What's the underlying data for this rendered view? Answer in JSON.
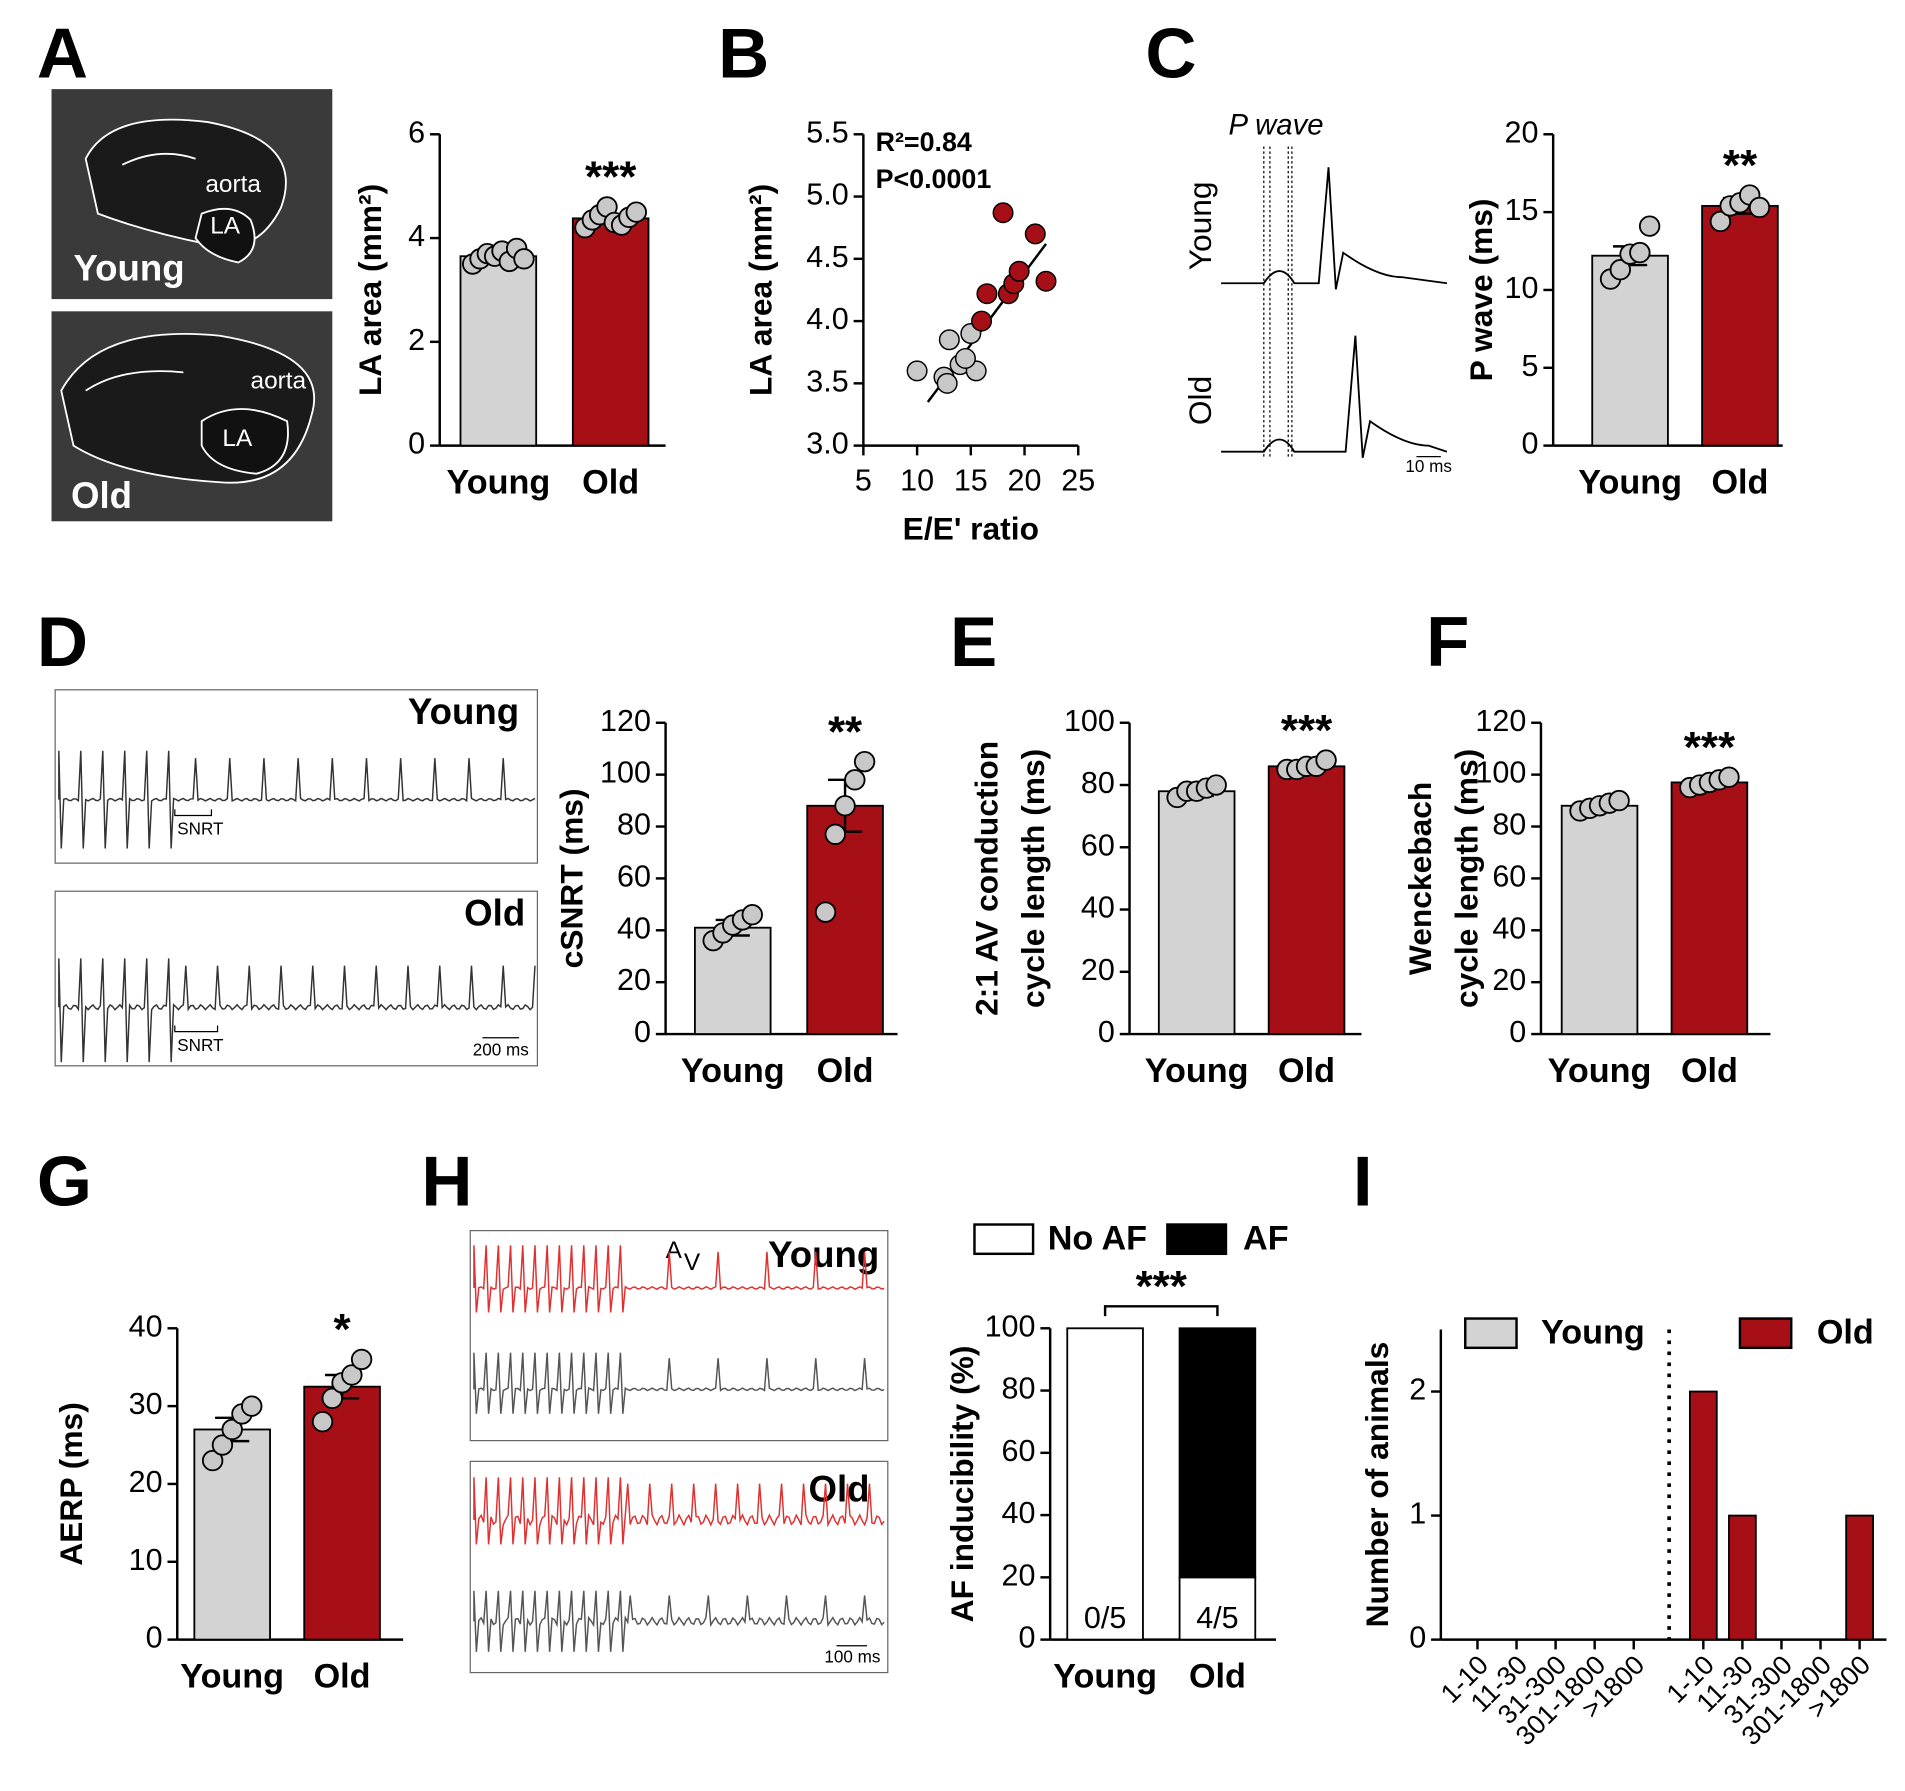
{
  "panel_labels": [
    "A",
    "B",
    "C",
    "D",
    "E",
    "F",
    "G",
    "H",
    "I"
  ],
  "images": [
    {
      "labels": [
        "aorta",
        "LA",
        "Young"
      ]
    },
    {
      "labels": [
        "aorta",
        "LA",
        "Old"
      ]
    },
    {
      "labels": [
        "P wave",
        "Young",
        "Old",
        "10 ms"
      ]
    },
    {
      "labels": [
        "Young",
        "SNRT"
      ]
    },
    {
      "labels": [
        "Old",
        "SNRT",
        "200 ms"
      ]
    },
    {
      "labels": [
        "A",
        "V",
        "Young"
      ]
    },
    {
      "labels": [
        "Old",
        "100 ms"
      ]
    }
  ],
  "chart_data": [
    {
      "type": "bar",
      "categories": [
        "Young",
        "Old"
      ],
      "values": [
        3.65,
        4.38
      ],
      "errors": [
        0.05,
        0.07
      ],
      "points": [
        [
          3.5,
          3.6,
          3.7,
          3.65,
          3.75,
          3.55,
          3.8,
          3.6
        ],
        [
          4.2,
          4.35,
          4.45,
          4.6,
          4.3,
          4.25,
          4.4,
          4.5
        ]
      ],
      "colors": [
        "#d3d3d3",
        "#a50f15"
      ],
      "ylim": [
        0,
        6
      ],
      "yticks": [
        0,
        2,
        4,
        6
      ],
      "ylabel": [
        "LA area (mm²)"
      ],
      "significance": "***"
    },
    {
      "type": "scatter",
      "xlabel": "E/E' ratio",
      "ylabel": [
        "LA area (mm²)"
      ],
      "annotations": [
        "R²=0.84",
        "P<0.0001"
      ],
      "series": [
        {
          "color": "#c8c8c8",
          "x": [
            10,
            12.5,
            13,
            14,
            12.8,
            15,
            15.5,
            14.5
          ],
          "y": [
            3.6,
            3.55,
            3.85,
            3.65,
            3.5,
            3.9,
            3.6,
            3.7
          ]
        },
        {
          "color": "#a50f15",
          "x": [
            16,
            16.5,
            18,
            18.5,
            19,
            19.5,
            21,
            22
          ],
          "y": [
            4.0,
            4.22,
            4.87,
            4.22,
            4.3,
            4.4,
            4.7,
            4.32
          ]
        }
      ],
      "fit": {
        "x": [
          11,
          22
        ],
        "y": [
          3.35,
          4.62
        ]
      },
      "xlim": [
        5,
        25
      ],
      "xticks": [
        5,
        10,
        15,
        20,
        25
      ],
      "ylim": [
        3,
        5.5
      ],
      "yticks": [
        {
          "value": 3,
          "label": "3.0"
        },
        3.5,
        {
          "value": 4,
          "label": "4.0"
        },
        4.5,
        {
          "value": 5,
          "label": "5.0"
        },
        5.5
      ]
    },
    {
      "type": "bar",
      "categories": [
        "Young",
        "Old"
      ],
      "values": [
        12.2,
        15.4
      ],
      "errors": [
        0.6,
        0.5
      ],
      "points": [
        [
          10.7,
          11.3,
          12.3,
          12.4,
          14.1
        ],
        [
          14.4,
          15.4,
          15.6,
          16.1,
          15.3
        ]
      ],
      "colors": [
        "#d3d3d3",
        "#a50f15"
      ],
      "ylim": [
        0,
        20
      ],
      "yticks": [
        0,
        5,
        10,
        15,
        20
      ],
      "ylabel": [
        "P wave (ms)"
      ],
      "significance": "**"
    },
    {
      "type": "bar",
      "categories": [
        "Young",
        "Old"
      ],
      "values": [
        41,
        88
      ],
      "errors": [
        3,
        10
      ],
      "points": [
        [
          36,
          39,
          42,
          44,
          46
        ],
        [
          47,
          77,
          88,
          98,
          105
        ]
      ],
      "colors": [
        "#d3d3d3",
        "#a50f15"
      ],
      "ylim": [
        0,
        120
      ],
      "yticks": [
        0,
        20,
        40,
        60,
        80,
        100,
        120
      ],
      "ylabel": [
        "cSNRT (ms)"
      ],
      "significance": "**"
    },
    {
      "type": "bar",
      "categories": [
        "Young",
        "Old"
      ],
      "values": [
        78,
        86
      ],
      "errors": [
        1.5,
        1
      ],
      "points": [
        [
          76,
          78,
          78,
          79,
          80
        ],
        [
          85,
          85,
          86,
          86,
          88
        ]
      ],
      "colors": [
        "#d3d3d3",
        "#a50f15"
      ],
      "ylim": [
        0,
        100
      ],
      "yticks": [
        0,
        20,
        40,
        60,
        80,
        100
      ],
      "ylabel": [
        "2:1 AV conduction",
        "cycle length (ms)"
      ],
      "significance": "***"
    },
    {
      "type": "bar",
      "categories": [
        "Young",
        "Old"
      ],
      "values": [
        88,
        97
      ],
      "errors": [
        1.5,
        1.5
      ],
      "points": [
        [
          86,
          87,
          88,
          89,
          90
        ],
        [
          95,
          96,
          97,
          98,
          99
        ]
      ],
      "colors": [
        "#d3d3d3",
        "#a50f15"
      ],
      "ylim": [
        0,
        120
      ],
      "yticks": [
        0,
        20,
        40,
        60,
        80,
        100,
        120
      ],
      "ylabel": [
        "Wenckebach",
        "cycle length (ms)"
      ],
      "significance": "***"
    },
    {
      "type": "bar",
      "categories": [
        "Young",
        "Old"
      ],
      "values": [
        27,
        32.5
      ],
      "errors": [
        1.5,
        1.5
      ],
      "points": [
        [
          23,
          25,
          27,
          29,
          30
        ],
        [
          28,
          31,
          33,
          34,
          36
        ]
      ],
      "colors": [
        "#d3d3d3",
        "#a50f15"
      ],
      "ylim": [
        0,
        40
      ],
      "yticks": [
        0,
        10,
        20,
        30,
        40
      ],
      "ylabel": [
        "AERP (ms)"
      ],
      "significance": "*"
    },
    {
      "type": "stacked",
      "categories": [
        "Young",
        "Old"
      ],
      "bar_labels": [
        "0/5",
        "4/5"
      ],
      "series": [
        {
          "name": "No AF",
          "color": "#ffffff",
          "values": [
            100,
            20
          ]
        },
        {
          "name": "AF",
          "color": "#000000",
          "values": [
            0,
            80
          ]
        }
      ],
      "ylim": [
        0,
        100
      ],
      "yticks": [
        0,
        20,
        40,
        60,
        80,
        100
      ],
      "ylabel": [
        "AF inducibility (%)"
      ],
      "significance": "***"
    },
    {
      "type": "grouped",
      "categories": [
        "1-10",
        "11-30",
        "31-300",
        "301-1800",
        ">1800"
      ],
      "series": [
        {
          "name": "Young",
          "color": "#d3d3d3",
          "values": [
            0,
            0,
            0,
            0,
            0
          ]
        },
        {
          "name": "Old",
          "color": "#a50f15",
          "values": [
            2,
            1,
            0,
            0,
            1
          ]
        }
      ],
      "ylim": [
        0,
        2.5
      ],
      "yticks": [
        0,
        1,
        2
      ],
      "ylabel": [
        "Number of animals"
      ]
    }
  ]
}
